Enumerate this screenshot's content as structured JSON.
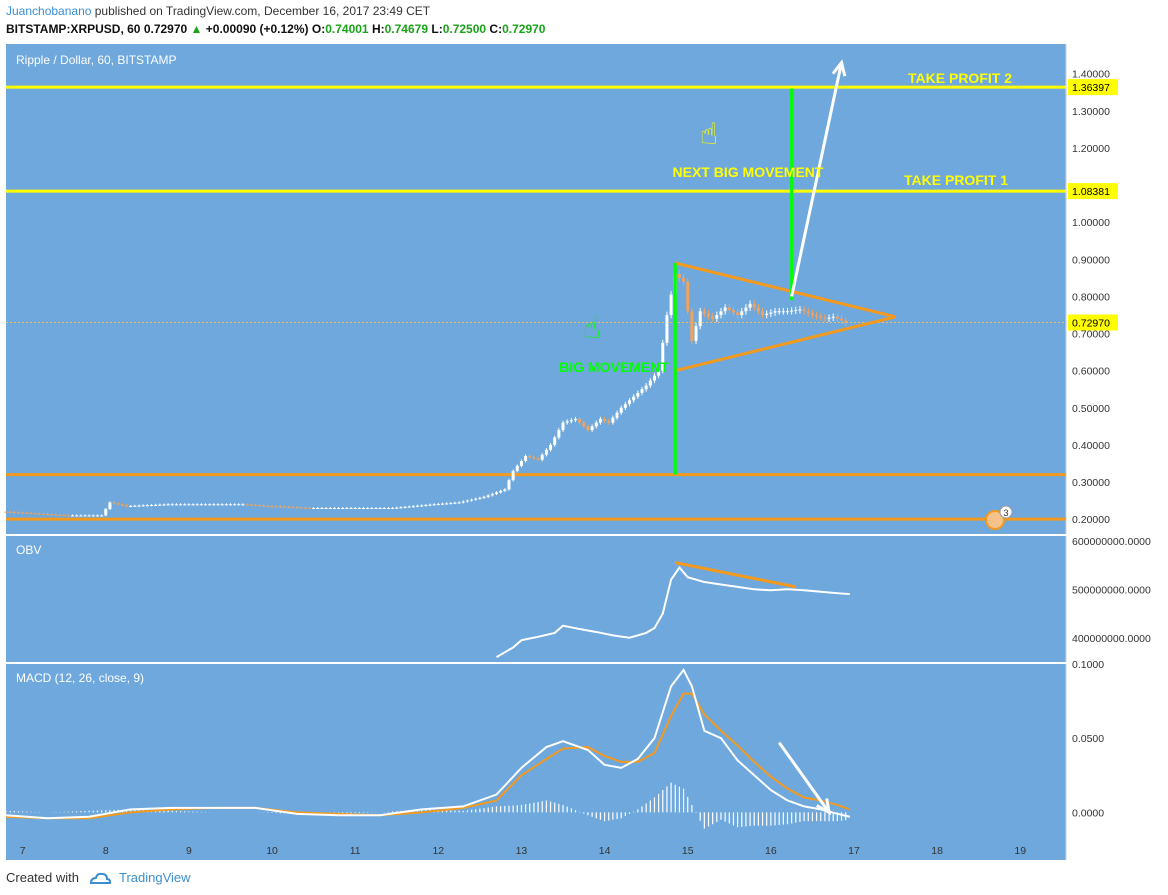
{
  "header": {
    "author": "Juanchobanano",
    "published": " published on TradingView.com, December 16, 2017 23:49 CET",
    "symbol": "BITSTAMP:XRPUSD, 60",
    "last": "0.72970",
    "change": "+0.00090 (+0.12%)",
    "o_label": "O:",
    "o": "0.74001",
    "h_label": "H:",
    "h": "0.74679",
    "l_label": "L:",
    "l": "0.72500",
    "c_label": "C:",
    "c": "0.72970"
  },
  "footer": {
    "created_with": "Created with",
    "brand": "TradingView"
  },
  "colors": {
    "pane_bg": "#6fa8dc",
    "candle_up": "#ffffff",
    "candle_down": "#f0a35e",
    "yellow": "#ffff00",
    "orange": "#f39a1e",
    "green": "#00ff00",
    "white": "#ffffff"
  },
  "chart_data": {
    "type": "line",
    "title": "Ripple / Dollar, 60, BITSTAMP",
    "x_ticks": [
      "7",
      "8",
      "9",
      "10",
      "11",
      "12",
      "13",
      "14",
      "15",
      "16",
      "17",
      "18",
      "19"
    ],
    "x_range": [
      6.8,
      19.55
    ],
    "price_axis": {
      "ticks": [
        "1.40000",
        "1.30000",
        "1.20000",
        "1.00000",
        "0.90000",
        "0.80000",
        "0.70000",
        "0.60000",
        "0.50000",
        "0.40000",
        "0.30000",
        "0.20000"
      ],
      "ylim": [
        0.16,
        1.48
      ],
      "last_price_label": "0.72970",
      "last_price": 0.7297
    },
    "price_series": {
      "name": "",
      "x": [
        6.8,
        7.2,
        7.6,
        8.0,
        8.1,
        8.3,
        8.8,
        9.3,
        9.7,
        10.0,
        10.5,
        11.0,
        11.5,
        12.0,
        12.3,
        12.6,
        12.85,
        12.95,
        13.1,
        13.25,
        13.4,
        13.55,
        13.7,
        13.85,
        14.0,
        14.1,
        14.25,
        14.4,
        14.55,
        14.7,
        14.8,
        14.9,
        15.0,
        15.1,
        15.2,
        15.35,
        15.5,
        15.65,
        15.8,
        15.95,
        16.1,
        16.25,
        16.4,
        16.55,
        16.7,
        16.8,
        16.95
      ],
      "y": [
        0.22,
        0.215,
        0.21,
        0.21,
        0.245,
        0.235,
        0.24,
        0.24,
        0.24,
        0.235,
        0.23,
        0.23,
        0.23,
        0.24,
        0.245,
        0.26,
        0.28,
        0.33,
        0.37,
        0.36,
        0.4,
        0.46,
        0.47,
        0.44,
        0.47,
        0.46,
        0.5,
        0.53,
        0.56,
        0.6,
        0.75,
        0.86,
        0.84,
        0.68,
        0.76,
        0.74,
        0.77,
        0.75,
        0.78,
        0.75,
        0.76,
        0.76,
        0.765,
        0.75,
        0.74,
        0.745,
        0.73
      ]
    },
    "horizontal_lines": [
      {
        "price": 1.36397,
        "label": "1.36397",
        "color_key": "yellow"
      },
      {
        "price": 1.08381,
        "label": "1.08381",
        "color_key": "yellow"
      },
      {
        "price": 0.32,
        "label": "",
        "color_key": "orange"
      },
      {
        "price": 0.2,
        "label": "",
        "color_key": "orange"
      }
    ],
    "annotations": {
      "take_profit_2": "TAKE PROFIT 2",
      "take_profit_1": "TAKE PROFIT 1",
      "next_big_movement": "NEXT BIG MOVEMENT",
      "big_movement": "BIG MOVEMENT"
    },
    "triangle": {
      "apex": [
        17.5,
        0.745
      ],
      "upper_start": [
        14.85,
        0.89
      ],
      "lower_start": [
        14.85,
        0.6
      ]
    },
    "green_lines": [
      {
        "x": 14.85,
        "y0": 0.32,
        "y1": 0.89
      },
      {
        "x": 16.25,
        "y0": 0.79,
        "y1": 1.36
      }
    ],
    "white_arrow": {
      "from": [
        16.25,
        0.8
      ],
      "to": [
        16.85,
        1.43
      ]
    },
    "event_badge": "3",
    "obv": {
      "label": "OBV",
      "ticks": [
        "600000000.0000",
        "500000000.0000",
        "400000000.0000"
      ],
      "ylim": [
        350000000,
        610000000
      ],
      "x": [
        12.7,
        12.9,
        13.0,
        13.2,
        13.4,
        13.5,
        13.7,
        13.9,
        14.1,
        14.3,
        14.5,
        14.6,
        14.7,
        14.8,
        14.9,
        15.0,
        15.2,
        15.4,
        15.6,
        15.8,
        16.0,
        16.2,
        16.4,
        16.6,
        16.8,
        16.95
      ],
      "y": [
        360000000,
        380000000,
        395000000,
        402000000,
        410000000,
        425000000,
        418000000,
        412000000,
        405000000,
        400000000,
        410000000,
        420000000,
        450000000,
        520000000,
        545000000,
        525000000,
        515000000,
        510000000,
        505000000,
        500000000,
        498000000,
        500000000,
        498000000,
        495000000,
        492000000,
        490000000
      ],
      "divergence": {
        "from": [
          14.85,
          555000000
        ],
        "to": [
          16.3,
          505000000
        ]
      }
    },
    "macd": {
      "label": "MACD (12, 26, close, 9)",
      "ticks": [
        "0.1000",
        "0.0500",
        "0.0000"
      ],
      "ylim": [
        -0.02,
        0.1
      ],
      "x": [
        6.8,
        7.3,
        7.8,
        8.3,
        8.8,
        9.3,
        9.8,
        10.3,
        10.8,
        11.3,
        11.8,
        12.3,
        12.7,
        13.0,
        13.3,
        13.5,
        13.8,
        14.0,
        14.2,
        14.4,
        14.6,
        14.8,
        14.95,
        15.05,
        15.2,
        15.4,
        15.6,
        15.8,
        16.0,
        16.2,
        16.4,
        16.6,
        16.8,
        16.95
      ],
      "macd_y": [
        -0.002,
        -0.004,
        -0.003,
        0.002,
        0.003,
        0.003,
        0.003,
        -0.001,
        -0.002,
        -0.002,
        0.002,
        0.004,
        0.012,
        0.03,
        0.044,
        0.048,
        0.042,
        0.032,
        0.03,
        0.036,
        0.05,
        0.085,
        0.096,
        0.085,
        0.055,
        0.05,
        0.035,
        0.025,
        0.015,
        0.008,
        0.004,
        0.002,
        -0.001,
        -0.003
      ],
      "signal_y": [
        -0.003,
        -0.004,
        -0.004,
        0.0,
        0.002,
        0.003,
        0.003,
        0.0,
        -0.001,
        -0.002,
        0.0,
        0.003,
        0.008,
        0.025,
        0.036,
        0.043,
        0.044,
        0.038,
        0.034,
        0.034,
        0.04,
        0.065,
        0.08,
        0.08,
        0.066,
        0.055,
        0.045,
        0.034,
        0.024,
        0.016,
        0.01,
        0.008,
        0.005,
        0.002
      ],
      "white_arrow": {
        "from": [
          16.1,
          0.047
        ],
        "to": [
          16.7,
          0.0
        ]
      }
    }
  }
}
